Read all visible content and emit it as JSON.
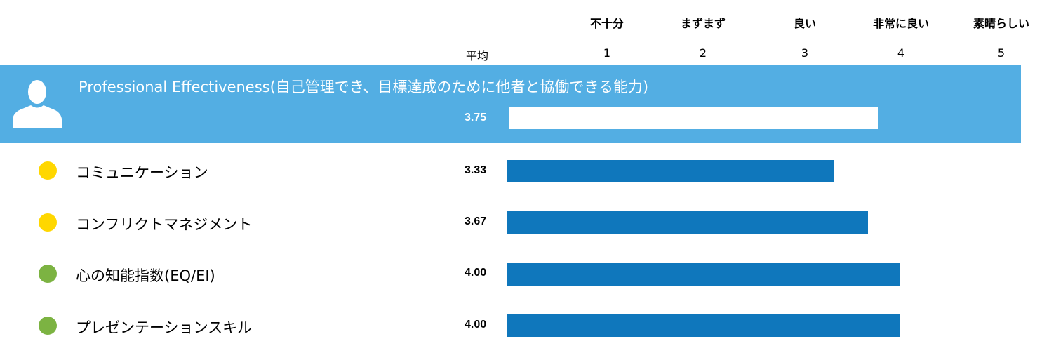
{
  "chart_data": {
    "type": "bar",
    "orientation": "horizontal",
    "scale_labels": [
      "不十分",
      "まずまず",
      "良い",
      "非常に良い",
      "素晴らしい"
    ],
    "scale_ticks": [
      "1",
      "2",
      "3",
      "4",
      "5"
    ],
    "xlim": [
      0,
      5
    ],
    "average_column_label": "平均",
    "header": {
      "title": "Professional Effectiveness(自己管理でき、目標達成のために他者と協働できる能力)",
      "value": 3.75,
      "value_label": "3.75",
      "bar_color": "#ffffff",
      "band_color": "#53aee3",
      "icon": "person-silhouette-icon"
    },
    "categories": [
      "コミュニケーション",
      "コンフリクトマネジメント",
      "心の知能指数(EQ/EI)",
      "プレゼンテーションスキル"
    ],
    "values": [
      3.33,
      3.67,
      4.0,
      4.0
    ],
    "value_labels": [
      "3.33",
      "3.67",
      "4.00",
      "4.00"
    ],
    "status_colors": [
      "#ffd700",
      "#ffd700",
      "#7cb342",
      "#7cb342"
    ],
    "bar_color": "#0f77bc"
  }
}
